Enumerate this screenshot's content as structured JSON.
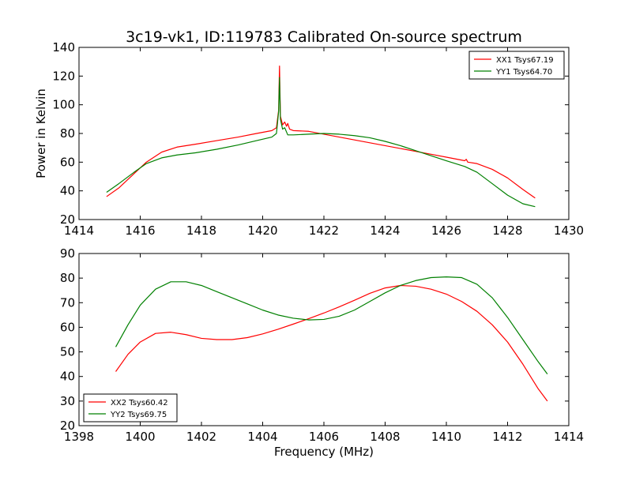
{
  "figure": {
    "title": "3c19-vk1, ID:119783 Calibrated On-source spectrum"
  },
  "chart_data": [
    {
      "type": "line",
      "title": "3c19-vk1, ID:119783 Calibrated On-source spectrum",
      "xlabel": "",
      "ylabel": "Power in Kelvin",
      "xlim": [
        1414,
        1430
      ],
      "ylim": [
        20,
        140
      ],
      "xticks": [
        1414,
        1416,
        1418,
        1420,
        1422,
        1424,
        1426,
        1428,
        1430
      ],
      "yticks": [
        20,
        40,
        60,
        80,
        100,
        120,
        140
      ],
      "grid": false,
      "legend_position": "top-right",
      "series": [
        {
          "name": "XX1 Tsys67.19",
          "color": "#ff0000",
          "x": [
            1414.9,
            1415.3,
            1415.8,
            1416.2,
            1416.7,
            1417.2,
            1417.8,
            1418.5,
            1419.2,
            1419.8,
            1420.3,
            1420.45,
            1420.52,
            1420.55,
            1420.58,
            1420.65,
            1420.72,
            1420.78,
            1420.82,
            1420.88,
            1421.0,
            1421.5,
            1422.0,
            1422.5,
            1423.0,
            1423.5,
            1424.0,
            1424.5,
            1425.0,
            1425.5,
            1426.0,
            1426.6,
            1426.65,
            1426.7,
            1427.0,
            1427.5,
            1428.0,
            1428.5,
            1428.9
          ],
          "y": [
            36,
            42,
            52,
            60,
            67,
            70.5,
            72.5,
            75,
            77.5,
            80,
            82,
            84,
            96,
            127,
            92,
            86,
            88,
            85,
            87,
            83,
            82,
            81.5,
            79.5,
            77.5,
            75.5,
            73.5,
            71.5,
            69.5,
            67.5,
            65.5,
            63.5,
            61,
            62,
            60,
            59,
            55,
            49,
            41,
            35
          ]
        },
        {
          "name": "YY1 Tsys64.70",
          "color": "#008000",
          "x": [
            1414.9,
            1415.3,
            1415.8,
            1416.2,
            1416.7,
            1417.2,
            1417.8,
            1418.5,
            1419.2,
            1419.8,
            1420.3,
            1420.45,
            1420.52,
            1420.55,
            1420.58,
            1420.65,
            1420.72,
            1420.78,
            1420.82,
            1421.0,
            1421.5,
            1422.0,
            1422.5,
            1423.0,
            1423.5,
            1424.0,
            1424.5,
            1425.0,
            1425.5,
            1426.0,
            1426.6,
            1427.0,
            1427.5,
            1428.0,
            1428.5,
            1428.9
          ],
          "y": [
            39,
            45,
            53,
            59,
            63,
            65,
            66.5,
            69,
            72,
            75,
            77.5,
            80,
            95,
            119,
            90,
            83,
            84,
            81,
            79,
            79,
            79.5,
            80,
            79.5,
            78.5,
            77,
            74.5,
            71.5,
            68,
            64.5,
            61,
            57,
            53,
            45,
            37,
            31,
            29
          ]
        }
      ]
    },
    {
      "type": "line",
      "title": "",
      "xlabel": "Frequency (MHz)",
      "ylabel": "",
      "xlim": [
        1398,
        1414
      ],
      "ylim": [
        20,
        90
      ],
      "xticks": [
        1398,
        1400,
        1402,
        1404,
        1406,
        1408,
        1410,
        1412,
        1414
      ],
      "yticks": [
        20,
        30,
        40,
        50,
        60,
        70,
        80,
        90
      ],
      "grid": false,
      "legend_position": "bottom-left",
      "series": [
        {
          "name": "XX2 Tsys60.42",
          "color": "#ff0000",
          "x": [
            1399.2,
            1399.6,
            1400.0,
            1400.5,
            1401.0,
            1401.5,
            1402.0,
            1402.5,
            1403.0,
            1403.5,
            1404.0,
            1404.5,
            1405.0,
            1405.5,
            1406.0,
            1406.5,
            1407.0,
            1407.5,
            1408.0,
            1408.5,
            1409.0,
            1409.5,
            1410.0,
            1410.5,
            1411.0,
            1411.5,
            1412.0,
            1412.5,
            1413.0,
            1413.3
          ],
          "y": [
            42,
            49,
            54,
            57.5,
            58,
            57,
            55.5,
            55,
            55,
            55.8,
            57.3,
            59.2,
            61.3,
            63.5,
            65.8,
            68.3,
            71,
            73.8,
            76,
            77,
            76.7,
            75.5,
            73.5,
            70.5,
            66.5,
            61,
            54,
            45,
            35,
            30
          ]
        },
        {
          "name": "YY2 Tsys69.75",
          "color": "#008000",
          "x": [
            1399.2,
            1399.6,
            1400.0,
            1400.5,
            1401.0,
            1401.5,
            1402.0,
            1402.5,
            1403.0,
            1403.5,
            1404.0,
            1404.5,
            1405.0,
            1405.5,
            1406.0,
            1406.5,
            1407.0,
            1407.5,
            1408.0,
            1408.5,
            1409.0,
            1409.5,
            1410.0,
            1410.5,
            1411.0,
            1411.5,
            1412.0,
            1412.5,
            1413.0,
            1413.3
          ],
          "y": [
            52,
            61,
            69,
            75.5,
            78.5,
            78.5,
            77,
            74.5,
            72,
            69.5,
            67,
            65,
            63.7,
            63,
            63.2,
            64.5,
            67,
            70.5,
            74,
            77,
            79,
            80.2,
            80.5,
            80.2,
            77.5,
            72,
            64,
            55,
            46,
            41
          ]
        }
      ]
    }
  ]
}
